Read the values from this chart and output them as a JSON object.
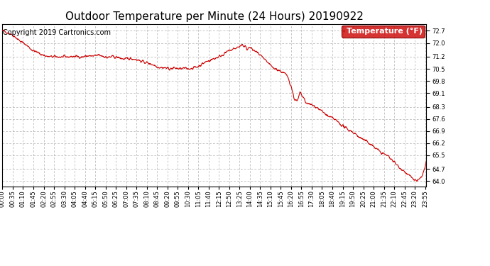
{
  "title": "Outdoor Temperature per Minute (24 Hours) 20190922",
  "copyright_text": "Copyright 2019 Cartronics.com",
  "legend_label": "Temperature (°F)",
  "legend_bg": "#cc0000",
  "legend_text_color": "#ffffff",
  "line_color": "#cc0000",
  "bg_color": "#ffffff",
  "grid_color": "#999999",
  "yticks": [
    64.0,
    64.7,
    65.5,
    66.2,
    66.9,
    67.6,
    68.3,
    69.1,
    69.8,
    70.5,
    71.2,
    72.0,
    72.7
  ],
  "ylim": [
    63.7,
    73.1
  ],
  "title_fontsize": 11,
  "tick_fontsize": 6,
  "copyright_fontsize": 7,
  "legend_fontsize": 8
}
